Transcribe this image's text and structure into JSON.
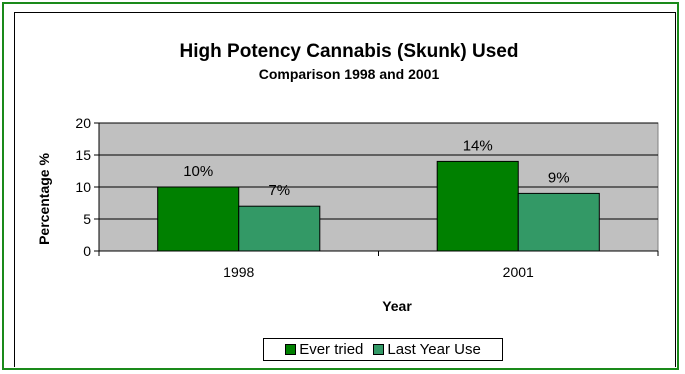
{
  "chart_data": {
    "type": "bar",
    "title": "High Potency Cannabis (Skunk) Used",
    "subtitle": "Comparison 1998 and 2001",
    "xlabel": "Year",
    "ylabel": "Percentage %",
    "categories": [
      "1998",
      "2001"
    ],
    "series": [
      {
        "name": "Ever tried",
        "values": [
          10,
          14
        ],
        "labels": [
          "10%",
          "14%"
        ],
        "color": "#008000"
      },
      {
        "name": "Last Year Use",
        "values": [
          7,
          9
        ],
        "labels": [
          "7%",
          "9%"
        ],
        "color": "#339966"
      }
    ],
    "ylim": [
      0,
      20
    ],
    "yticks": [
      0,
      5,
      10,
      15,
      20
    ],
    "plot_background": "#c0c0c0",
    "grid": true,
    "legend": "bottom"
  },
  "colors": {
    "frame_border": "#1a8a1a",
    "plot_background": "#c0c0c0"
  }
}
